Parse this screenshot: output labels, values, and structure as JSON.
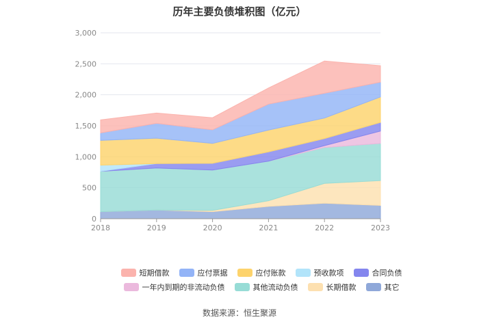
{
  "chart_data": {
    "type": "area",
    "stacked": true,
    "title": "历年主要负债堆积图（亿元）",
    "x": [
      "2018",
      "2019",
      "2020",
      "2021",
      "2022",
      "2023"
    ],
    "ylim": [
      0,
      3000
    ],
    "yticks": [
      "0",
      "500",
      "1,000",
      "1,500",
      "2,000",
      "2,500",
      "3,000"
    ],
    "series": [
      {
        "name": "其它",
        "values": [
          115,
          140,
          115,
          200,
          250,
          215
        ],
        "color": "#8fa8d9"
      },
      {
        "name": "长期借款",
        "values": [
          0,
          0,
          20,
          90,
          320,
          400
        ],
        "color": "#fde0b0"
      },
      {
        "name": "其他流动负债",
        "values": [
          650,
          680,
          650,
          640,
          580,
          600
        ],
        "color": "#97dcd6"
      },
      {
        "name": "一年内到期的非流动负债",
        "values": [
          0,
          0,
          0,
          0,
          30,
          200
        ],
        "color": "#ebb9dd"
      },
      {
        "name": "合同负债",
        "values": [
          0,
          70,
          110,
          150,
          115,
          140
        ],
        "color": "#8486ee"
      },
      {
        "name": "预收款项",
        "values": [
          100,
          0,
          0,
          0,
          0,
          0
        ],
        "color": "#b2e4fa"
      },
      {
        "name": "应付账款",
        "values": [
          400,
          410,
          320,
          350,
          330,
          410
        ],
        "color": "#fdd36c"
      },
      {
        "name": "应付票据",
        "values": [
          120,
          240,
          220,
          420,
          400,
          240
        ],
        "color": "#93b4f7"
      },
      {
        "name": "短期借款",
        "values": [
          210,
          165,
          195,
          260,
          520,
          265
        ],
        "color": "#fbb3ad"
      }
    ],
    "legend": [
      [
        "短期借款",
        "应付票据",
        "应付账款",
        "预收款项",
        "合同负债"
      ],
      [
        "一年内到期的非流动负债",
        "其他流动负债",
        "长期借款",
        "其它"
      ]
    ]
  },
  "colors": {
    "短期借款": "#fbb3ad",
    "应付票据": "#93b4f7",
    "应付账款": "#fdd36c",
    "预收款项": "#b2e4fa",
    "合同负债": "#8486ee",
    "一年内到期的非流动负债": "#ebb9dd",
    "其他流动负债": "#97dcd6",
    "长期借款": "#fde0b0",
    "其它": "#8fa8d9"
  },
  "source": "数据来源：恒生聚源"
}
